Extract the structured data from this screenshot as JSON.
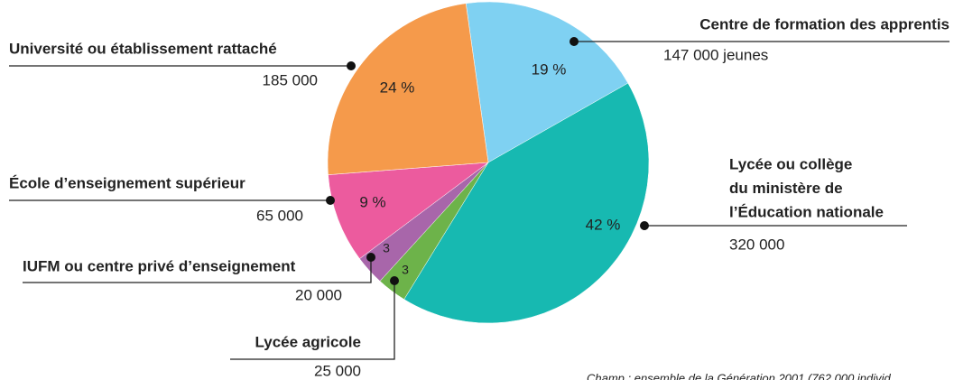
{
  "chart_data": {
    "type": "pie",
    "categories": [
      "Centre de formation des apprentis",
      [
        "Lycée ou collège",
        "du ministère de",
        "l’Éducation nationale"
      ],
      "Lycée agricole",
      "IUFM ou centre privé d’enseignement",
      "École d’enseignement supérieur",
      "Université ou établissement rattaché"
    ],
    "values": [
      19,
      42,
      3,
      3,
      9,
      24
    ],
    "value_labels": [
      "19 %",
      "42 %",
      "3",
      "3",
      "9 %",
      "24 %"
    ],
    "counts": [
      {
        "value": 147000,
        "label": "147 000 jeunes"
      },
      {
        "value": 320000,
        "label": "320 000"
      },
      {
        "value": 25000,
        "label": "25 000"
      },
      {
        "value": 20000,
        "label": "20 000"
      },
      {
        "value": 65000,
        "label": "65 000"
      },
      {
        "value": 185000,
        "label": "185 000"
      }
    ],
    "colors": [
      "#7fd1f2",
      "#17b9b1",
      "#6db34a",
      "#a866aa",
      "#ec5b9e",
      "#f59a4b"
    ],
    "note": "Champ : ensemble de la Génération 2001 (762 000 individ"
  }
}
